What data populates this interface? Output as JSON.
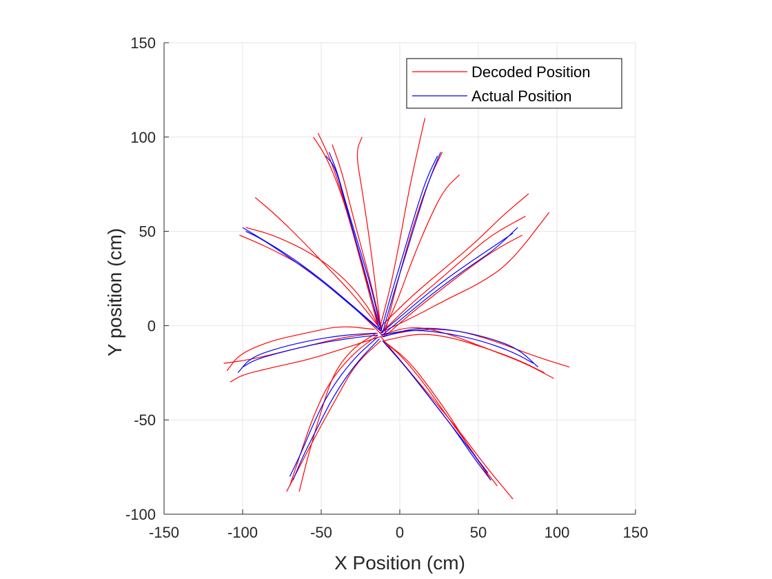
{
  "chart_data": {
    "type": "line",
    "title": "",
    "xlabel": "X Position (cm)",
    "ylabel": "Y position (cm)",
    "xlim": [
      -150,
      150
    ],
    "ylim": [
      -100,
      150
    ],
    "xticks": [
      -150,
      -100,
      -50,
      0,
      50,
      100,
      150
    ],
    "yticks": [
      -100,
      -50,
      0,
      50,
      100,
      150
    ],
    "xtick_labels": [
      "-150",
      "-100",
      "-50",
      "0",
      "50",
      "100",
      "150"
    ],
    "ytick_labels": [
      "-100",
      "-50",
      "0",
      "50",
      "100",
      "150"
    ],
    "grid": true,
    "legend_position": "top-right",
    "series": [
      {
        "name": "Decoded Position",
        "color": "#ff0000",
        "trajectories": [
          {
            "x": [
              -12,
              -20,
              -35,
              -55,
              -80,
              -98
            ],
            "y": [
              -3,
              10,
              25,
              38,
              48,
              52
            ]
          },
          {
            "x": [
              -14,
              -28,
              -45,
              -62,
              -78,
              -92
            ],
            "y": [
              0,
              15,
              30,
              45,
              58,
              68
            ]
          },
          {
            "x": [
              -10,
              -22,
              -40,
              -62,
              -85,
              -102
            ],
            "y": [
              -6,
              4,
              18,
              32,
              42,
              48
            ]
          },
          {
            "x": [
              -12,
              -20,
              -28,
              -36,
              -44,
              -52
            ],
            "y": [
              -2,
              20,
              45,
              68,
              88,
              102
            ]
          },
          {
            "x": [
              -14,
              -22,
              -30,
              -38,
              -47,
              -55
            ],
            "y": [
              0,
              25,
              50,
              72,
              90,
              100
            ]
          },
          {
            "x": [
              -11,
              -17,
              -24,
              -31,
              -37,
              -43
            ],
            "y": [
              -4,
              18,
              40,
              62,
              82,
              96
            ]
          },
          {
            "x": [
              -12,
              -16,
              -20,
              -24,
              -28,
              -24
            ],
            "y": [
              -2,
              25,
              50,
              72,
              92,
              100
            ]
          },
          {
            "x": [
              -13,
              -6,
              0,
              5,
              10,
              16
            ],
            "y": [
              -2,
              20,
              45,
              68,
              88,
              110
            ]
          },
          {
            "x": [
              -10,
              -4,
              4,
              12,
              20,
              27
            ],
            "y": [
              -6,
              15,
              40,
              62,
              80,
              92
            ]
          },
          {
            "x": [
              -11,
              -2,
              8,
              18,
              28,
              38
            ],
            "y": [
              -4,
              12,
              35,
              55,
              72,
              80
            ]
          },
          {
            "x": [
              -12,
              5,
              22,
              40,
              58,
              80
            ],
            "y": [
              -4,
              10,
              22,
              35,
              48,
              58
            ]
          },
          {
            "x": [
              -14,
              8,
              28,
              48,
              65,
              82
            ],
            "y": [
              -2,
              16,
              30,
              44,
              58,
              70
            ]
          },
          {
            "x": [
              -10,
              5,
              20,
              40,
              60,
              78
            ],
            "y": [
              -6,
              5,
              15,
              28,
              40,
              48
            ]
          },
          {
            "x": [
              -13,
              10,
              30,
              50,
              70,
              95
            ],
            "y": [
              -4,
              5,
              14,
              22,
              33,
              60
            ]
          },
          {
            "x": [
              -12,
              8,
              30,
              55,
              80,
              98
            ],
            "y": [
              -5,
              0,
              -4,
              -12,
              -20,
              -28
            ]
          },
          {
            "x": [
              -13,
              10,
              35,
              60,
              85,
              108
            ],
            "y": [
              -6,
              -2,
              -2,
              -8,
              -16,
              -22
            ]
          },
          {
            "x": [
              -10,
              12,
              32,
              55,
              75,
              92
            ],
            "y": [
              -8,
              -4,
              -6,
              -12,
              -18,
              -25
            ]
          },
          {
            "x": [
              -11,
              0,
              15,
              30,
              45,
              58
            ],
            "y": [
              -8,
              -15,
              -30,
              -48,
              -65,
              -82
            ]
          },
          {
            "x": [
              -12,
              2,
              20,
              38,
              55,
              72
            ],
            "y": [
              -6,
              -20,
              -38,
              -56,
              -75,
              -92
            ]
          },
          {
            "x": [
              -9,
              5,
              20,
              35,
              48,
              62
            ],
            "y": [
              -9,
              -18,
              -34,
              -52,
              -70,
              -85
            ]
          },
          {
            "x": [
              -14,
              -30,
              -45,
              -55,
              -62,
              -70
            ],
            "y": [
              -5,
              -15,
              -30,
              -48,
              -65,
              -85
            ]
          },
          {
            "x": [
              -12,
              -28,
              -40,
              -52,
              -62,
              -72
            ],
            "y": [
              -8,
              -20,
              -38,
              -56,
              -72,
              -88
            ]
          },
          {
            "x": [
              -15,
              -30,
              -42,
              -50,
              -58,
              -64
            ],
            "y": [
              -4,
              -12,
              -25,
              -45,
              -68,
              -88
            ]
          },
          {
            "x": [
              -14,
              -35,
              -55,
              -75,
              -95,
              -112
            ],
            "y": [
              -4,
              -6,
              -10,
              -14,
              -18,
              -20
            ]
          },
          {
            "x": [
              -13,
              -35,
              -58,
              -80,
              -100,
              -108
            ],
            "y": [
              -6,
              -12,
              -18,
              -22,
              -26,
              -30
            ]
          },
          {
            "x": [
              -16,
              -38,
              -60,
              -82,
              -102,
              -110
            ],
            "y": [
              -2,
              0,
              -4,
              -8,
              -15,
              -24
            ]
          }
        ]
      },
      {
        "name": "Actual Position",
        "color": "#0000ff",
        "trajectories": [
          {
            "x": [
              -12,
              -30,
              -50,
              -70,
              -88,
              -98
            ],
            "y": [
              -3,
              10,
              24,
              36,
              46,
              50
            ]
          },
          {
            "x": [
              -14,
              -32,
              -52,
              -72,
              -90,
              -100
            ],
            "y": [
              -1,
              12,
              26,
              38,
              47,
              52
            ]
          },
          {
            "x": [
              -12,
              -18,
              -26,
              -34,
              -40,
              -45
            ],
            "y": [
              -2,
              20,
              42,
              64,
              82,
              92
            ]
          },
          {
            "x": [
              -13,
              -20,
              -28,
              -35,
              -41,
              -47
            ],
            "y": [
              -2,
              22,
              45,
              66,
              84,
              90
            ]
          },
          {
            "x": [
              -12,
              -5,
              3,
              10,
              17,
              24
            ],
            "y": [
              -3,
              18,
              40,
              60,
              78,
              90
            ]
          },
          {
            "x": [
              -11,
              -4,
              4,
              12,
              19,
              26
            ],
            "y": [
              -4,
              17,
              38,
              60,
              78,
              92
            ]
          },
          {
            "x": [
              -12,
              5,
              22,
              40,
              58,
              72
            ],
            "y": [
              -4,
              8,
              20,
              31,
              41,
              49
            ]
          },
          {
            "x": [
              -11,
              6,
              24,
              42,
              60,
              75
            ],
            "y": [
              -5,
              7,
              19,
              30,
              40,
              52
            ]
          },
          {
            "x": [
              -12,
              8,
              30,
              52,
              72,
              85
            ],
            "y": [
              -5,
              -2,
              -4,
              -8,
              -14,
              -20
            ]
          },
          {
            "x": [
              -11,
              10,
              32,
              55,
              75,
              88
            ],
            "y": [
              -6,
              -1,
              -2,
              -6,
              -12,
              -22
            ]
          },
          {
            "x": [
              -11,
              2,
              17,
              32,
              45,
              56
            ],
            "y": [
              -8,
              -20,
              -36,
              -52,
              -66,
              -78
            ]
          },
          {
            "x": [
              -10,
              4,
              19,
              34,
              47,
              58
            ],
            "y": [
              -9,
              -22,
              -38,
              -54,
              -70,
              -82
            ]
          },
          {
            "x": [
              -14,
              -30,
              -45,
              -55,
              -63,
              -70
            ],
            "y": [
              -6,
              -18,
              -35,
              -52,
              -68,
              -80
            ]
          },
          {
            "x": [
              -13,
              -28,
              -42,
              -53,
              -62,
              -68
            ],
            "y": [
              -7,
              -20,
              -37,
              -55,
              -70,
              -82
            ]
          },
          {
            "x": [
              -14,
              -35,
              -55,
              -75,
              -92,
              -100
            ],
            "y": [
              -5,
              -7,
              -10,
              -14,
              -18,
              -22
            ]
          },
          {
            "x": [
              -15,
              -36,
              -58,
              -78,
              -95,
              -103
            ],
            "y": [
              -4,
              -5,
              -8,
              -12,
              -17,
              -25
            ]
          }
        ]
      }
    ]
  }
}
